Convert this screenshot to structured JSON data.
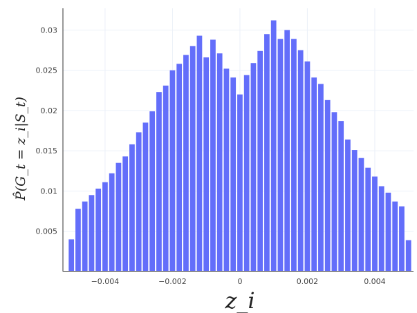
{
  "chart_data": {
    "type": "bar",
    "title": "",
    "xlabel": "z_i",
    "ylabel": "P̂(G_t = z_i|S_t)",
    "bar_color": "#636efa",
    "grid": true,
    "xlim": [
      -0.00525,
      0.00515
    ],
    "ylim": [
      0,
      0.0327
    ],
    "xticks": [
      -0.004,
      -0.002,
      0,
      0.002,
      0.004
    ],
    "xtick_labels": [
      "−0.004",
      "−0.002",
      "0",
      "0.002",
      "0.004"
    ],
    "yticks": [
      0.005,
      0.01,
      0.015,
      0.02,
      0.025,
      0.03
    ],
    "ytick_labels": [
      "0.005",
      "0.01",
      "0.015",
      "0.02",
      "0.025",
      "0.03"
    ],
    "bin_width": 0.0002,
    "x": [
      -0.005,
      -0.0048,
      -0.0046,
      -0.0044,
      -0.0042,
      -0.004,
      -0.0038,
      -0.0036,
      -0.0034,
      -0.0032,
      -0.003,
      -0.0028,
      -0.0026,
      -0.0024,
      -0.0022,
      -0.002,
      -0.0018,
      -0.0016,
      -0.0014,
      -0.0012,
      -0.001,
      -0.0008,
      -0.0006,
      -0.0004,
      -0.0002,
      0,
      0.0002,
      0.0004,
      0.0006,
      0.0008,
      0.001,
      0.0012,
      0.0014,
      0.0016,
      0.0018,
      0.002,
      0.0022,
      0.0024,
      0.0026,
      0.0028,
      0.003,
      0.0032,
      0.0034,
      0.0036,
      0.0038,
      0.004,
      0.0042,
      0.0044,
      0.0046,
      0.0048,
      0.005
    ],
    "values": [
      0.004,
      0.0078,
      0.0087,
      0.0095,
      0.0103,
      0.0111,
      0.0122,
      0.0135,
      0.0143,
      0.0158,
      0.0173,
      0.0185,
      0.0199,
      0.0223,
      0.0231,
      0.025,
      0.0258,
      0.0269,
      0.028,
      0.0293,
      0.0266,
      0.0288,
      0.0271,
      0.0252,
      0.0241,
      0.022,
      0.0244,
      0.0259,
      0.0274,
      0.0295,
      0.0312,
      0.0289,
      0.03,
      0.0289,
      0.0275,
      0.0261,
      0.0241,
      0.0233,
      0.0213,
      0.0198,
      0.0187,
      0.0164,
      0.0151,
      0.0141,
      0.0129,
      0.0118,
      0.0106,
      0.0098,
      0.0087,
      0.0081,
      0.0039
    ]
  }
}
